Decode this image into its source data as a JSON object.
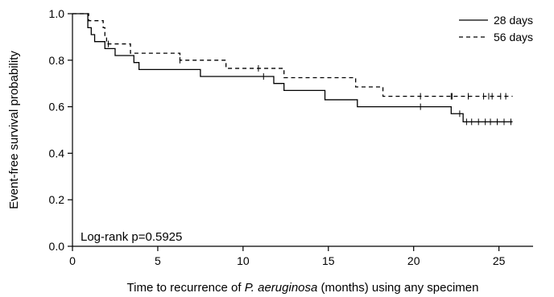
{
  "chart_data": {
    "type": "line",
    "subtype": "kaplan-meier-step",
    "xlabel_parts": [
      "Time to recurrence of ",
      "P. aeruginosa",
      " (months) using any specimen"
    ],
    "ylabel": "Event-free survival probability",
    "xlim": [
      0,
      27
    ],
    "ylim": [
      0,
      1
    ],
    "x_ticks": [
      0,
      5,
      10,
      15,
      20,
      25
    ],
    "x_tick_labels": [
      "0",
      "5",
      "10",
      "15",
      "20",
      "25"
    ],
    "y_ticks": [
      0.0,
      0.2,
      0.4,
      0.6,
      0.8,
      1.0
    ],
    "y_tick_labels": [
      "0.0",
      "0.2",
      "0.4",
      "0.6",
      "0.8",
      "1.0"
    ],
    "grid": false,
    "legend_position": "top-right",
    "annotation": "Log-rank p=0.5925",
    "series": [
      {
        "name": "28 days",
        "line_style": "solid",
        "steps": [
          [
            0,
            1.0
          ],
          [
            0.8,
            1.0
          ],
          [
            0.9,
            0.94
          ],
          [
            1.1,
            0.91
          ],
          [
            1.3,
            0.88
          ],
          [
            1.9,
            0.85
          ],
          [
            2.5,
            0.82
          ],
          [
            3.6,
            0.79
          ],
          [
            3.9,
            0.76
          ],
          [
            7.5,
            0.73
          ],
          [
            11.8,
            0.7
          ],
          [
            12.4,
            0.67
          ],
          [
            14.8,
            0.63
          ],
          [
            16.7,
            0.6
          ],
          [
            22.2,
            0.57
          ],
          [
            22.9,
            0.535
          ],
          [
            25.8,
            0.535
          ]
        ],
        "censored": [
          11.2,
          20.4,
          22.7,
          23.1,
          23.4,
          23.8,
          24.2,
          24.5,
          24.9,
          25.3,
          25.7
        ]
      },
      {
        "name": "56 days",
        "line_style": "dashed",
        "steps": [
          [
            0,
            1.0
          ],
          [
            0.9,
            1.0
          ],
          [
            0.95,
            0.97
          ],
          [
            1.8,
            0.94
          ],
          [
            1.9,
            0.9
          ],
          [
            2.0,
            0.87
          ],
          [
            3.4,
            0.83
          ],
          [
            6.3,
            0.8
          ],
          [
            9.0,
            0.765
          ],
          [
            12.4,
            0.725
          ],
          [
            16.6,
            0.685
          ],
          [
            18.2,
            0.645
          ],
          [
            25.8,
            0.645
          ]
        ],
        "censored": [
          2.1,
          6.3,
          10.9,
          20.4,
          22.2,
          22.25,
          23.2,
          24.1,
          24.4,
          24.6,
          25.1,
          25.4
        ]
      }
    ]
  }
}
